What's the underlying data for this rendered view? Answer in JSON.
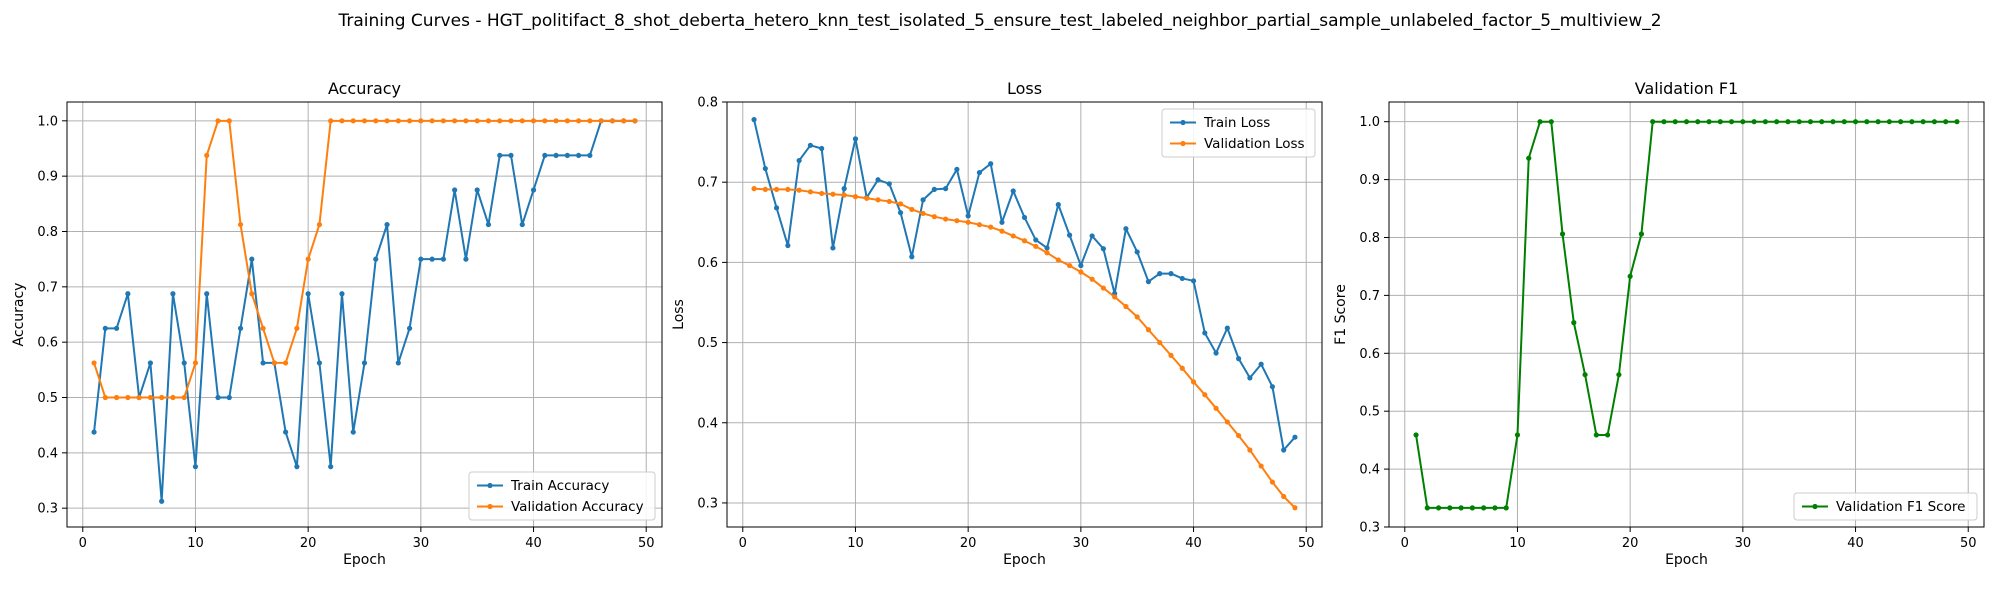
{
  "figure": {
    "suptitle": "Training Curves - HGT_politifact_8_shot_deberta_hetero_knn_test_isolated_5_ensure_test_labeled_neighbor_partial_sample_unlabeled_factor_5_multiview_2"
  },
  "chart_data": [
    {
      "type": "line",
      "title": "Accuracy",
      "xlabel": "Epoch",
      "ylabel": "Accuracy",
      "xlim": [
        -1.4,
        51.4
      ],
      "ylim": [
        0.266,
        1.034
      ],
      "xticks": [
        0,
        10,
        20,
        30,
        40,
        50
      ],
      "yticks": [
        0.3,
        0.4,
        0.5,
        0.6,
        0.7,
        0.8,
        0.9,
        1.0
      ],
      "ytick_labels": [
        "0.3",
        "0.4",
        "0.5",
        "0.6",
        "0.7",
        "0.8",
        "0.9",
        "1.0"
      ],
      "grid": true,
      "legend_position": "lower-right",
      "x": [
        1,
        2,
        3,
        4,
        5,
        6,
        7,
        8,
        9,
        10,
        11,
        12,
        13,
        14,
        15,
        16,
        17,
        18,
        19,
        20,
        21,
        22,
        23,
        24,
        25,
        26,
        27,
        28,
        29,
        30,
        31,
        32,
        33,
        34,
        35,
        36,
        37,
        38,
        39,
        40,
        41,
        42,
        43,
        44,
        45,
        46,
        47,
        48,
        49
      ],
      "series": [
        {
          "name": "Train Accuracy",
          "color": "#1f77b4",
          "values": [
            0.4375,
            0.625,
            0.625,
            0.6875,
            0.5,
            0.5625,
            0.3125,
            0.6875,
            0.5625,
            0.375,
            0.6875,
            0.5,
            0.5,
            0.625,
            0.75,
            0.5625,
            0.5625,
            0.4375,
            0.375,
            0.6875,
            0.5625,
            0.375,
            0.6875,
            0.4375,
            0.5625,
            0.75,
            0.8125,
            0.5625,
            0.625,
            0.75,
            0.75,
            0.75,
            0.875,
            0.75,
            0.875,
            0.8125,
            0.9375,
            0.9375,
            0.8125,
            0.875,
            0.9375,
            0.9375,
            0.9375,
            0.9375,
            0.9375,
            1.0,
            1.0,
            1.0,
            1.0
          ]
        },
        {
          "name": "Validation Accuracy",
          "color": "#ff7f0e",
          "values": [
            0.5625,
            0.5,
            0.5,
            0.5,
            0.5,
            0.5,
            0.5,
            0.5,
            0.5,
            0.5625,
            0.9375,
            1.0,
            1.0,
            0.8125,
            0.6875,
            0.625,
            0.5625,
            0.5625,
            0.625,
            0.75,
            0.8125,
            1.0,
            1.0,
            1.0,
            1.0,
            1.0,
            1.0,
            1.0,
            1.0,
            1.0,
            1.0,
            1.0,
            1.0,
            1.0,
            1.0,
            1.0,
            1.0,
            1.0,
            1.0,
            1.0,
            1.0,
            1.0,
            1.0,
            1.0,
            1.0,
            1.0,
            1.0,
            1.0,
            1.0
          ]
        }
      ]
    },
    {
      "type": "line",
      "title": "Loss",
      "xlabel": "Epoch",
      "ylabel": "Loss",
      "xlim": [
        -1.4,
        51.4
      ],
      "ylim": [
        0.27,
        0.8
      ],
      "xticks": [
        0,
        10,
        20,
        30,
        40,
        50
      ],
      "yticks": [
        0.3,
        0.4,
        0.5,
        0.6,
        0.7,
        0.8
      ],
      "ytick_labels": [
        "0.3",
        "0.4",
        "0.5",
        "0.6",
        "0.7",
        "0.8"
      ],
      "grid": true,
      "legend_position": "upper-right",
      "x": [
        1,
        2,
        3,
        4,
        5,
        6,
        7,
        8,
        9,
        10,
        11,
        12,
        13,
        14,
        15,
        16,
        17,
        18,
        19,
        20,
        21,
        22,
        23,
        24,
        25,
        26,
        27,
        28,
        29,
        30,
        31,
        32,
        33,
        34,
        35,
        36,
        37,
        38,
        39,
        40,
        41,
        42,
        43,
        44,
        45,
        46,
        47,
        48,
        49
      ],
      "series": [
        {
          "name": "Train Loss",
          "color": "#1f77b4",
          "values": [
            0.778,
            0.717,
            0.668,
            0.621,
            0.727,
            0.746,
            0.742,
            0.618,
            0.692,
            0.754,
            0.681,
            0.703,
            0.698,
            0.662,
            0.607,
            0.678,
            0.691,
            0.692,
            0.716,
            0.658,
            0.712,
            0.723,
            0.65,
            0.689,
            0.656,
            0.628,
            0.618,
            0.672,
            0.634,
            0.596,
            0.633,
            0.617,
            0.561,
            0.642,
            0.613,
            0.576,
            0.586,
            0.586,
            0.58,
            0.577,
            0.512,
            0.487,
            0.518,
            0.48,
            0.456,
            0.473,
            0.445,
            0.366,
            0.382
          ]
        },
        {
          "name": "Validation Loss",
          "color": "#ff7f0e",
          "values": [
            0.692,
            0.691,
            0.691,
            0.691,
            0.69,
            0.688,
            0.686,
            0.685,
            0.684,
            0.682,
            0.68,
            0.678,
            0.676,
            0.673,
            0.666,
            0.661,
            0.657,
            0.654,
            0.652,
            0.65,
            0.647,
            0.644,
            0.639,
            0.633,
            0.627,
            0.62,
            0.612,
            0.603,
            0.596,
            0.588,
            0.579,
            0.568,
            0.557,
            0.545,
            0.532,
            0.516,
            0.5,
            0.484,
            0.468,
            0.451,
            0.435,
            0.418,
            0.401,
            0.384,
            0.366,
            0.346,
            0.326,
            0.308,
            0.294
          ]
        }
      ]
    },
    {
      "type": "line",
      "title": "Validation F1",
      "xlabel": "Epoch",
      "ylabel": "F1 Score",
      "xlim": [
        -1.4,
        51.4
      ],
      "ylim": [
        0.3,
        1.034
      ],
      "xticks": [
        0,
        10,
        20,
        30,
        40,
        50
      ],
      "yticks": [
        0.3,
        0.4,
        0.5,
        0.6,
        0.7,
        0.8,
        0.9,
        1.0
      ],
      "ytick_labels": [
        "0.3",
        "0.4",
        "0.5",
        "0.6",
        "0.7",
        "0.8",
        "0.9",
        "1.0"
      ],
      "grid": true,
      "legend_position": "lower-right",
      "x": [
        1,
        2,
        3,
        4,
        5,
        6,
        7,
        8,
        9,
        10,
        11,
        12,
        13,
        14,
        15,
        16,
        17,
        18,
        19,
        20,
        21,
        22,
        23,
        24,
        25,
        26,
        27,
        28,
        29,
        30,
        31,
        32,
        33,
        34,
        35,
        36,
        37,
        38,
        39,
        40,
        41,
        42,
        43,
        44,
        45,
        46,
        47,
        48,
        49
      ],
      "series": [
        {
          "name": "Validation F1 Score",
          "color": "#008000",
          "values": [
            0.459,
            0.333,
            0.333,
            0.333,
            0.333,
            0.333,
            0.333,
            0.333,
            0.333,
            0.459,
            0.937,
            1.0,
            1.0,
            0.806,
            0.653,
            0.563,
            0.459,
            0.459,
            0.563,
            0.733,
            0.806,
            1.0,
            1.0,
            1.0,
            1.0,
            1.0,
            1.0,
            1.0,
            1.0,
            1.0,
            1.0,
            1.0,
            1.0,
            1.0,
            1.0,
            1.0,
            1.0,
            1.0,
            1.0,
            1.0,
            1.0,
            1.0,
            1.0,
            1.0,
            1.0,
            1.0,
            1.0,
            1.0,
            1.0
          ]
        }
      ]
    }
  ]
}
